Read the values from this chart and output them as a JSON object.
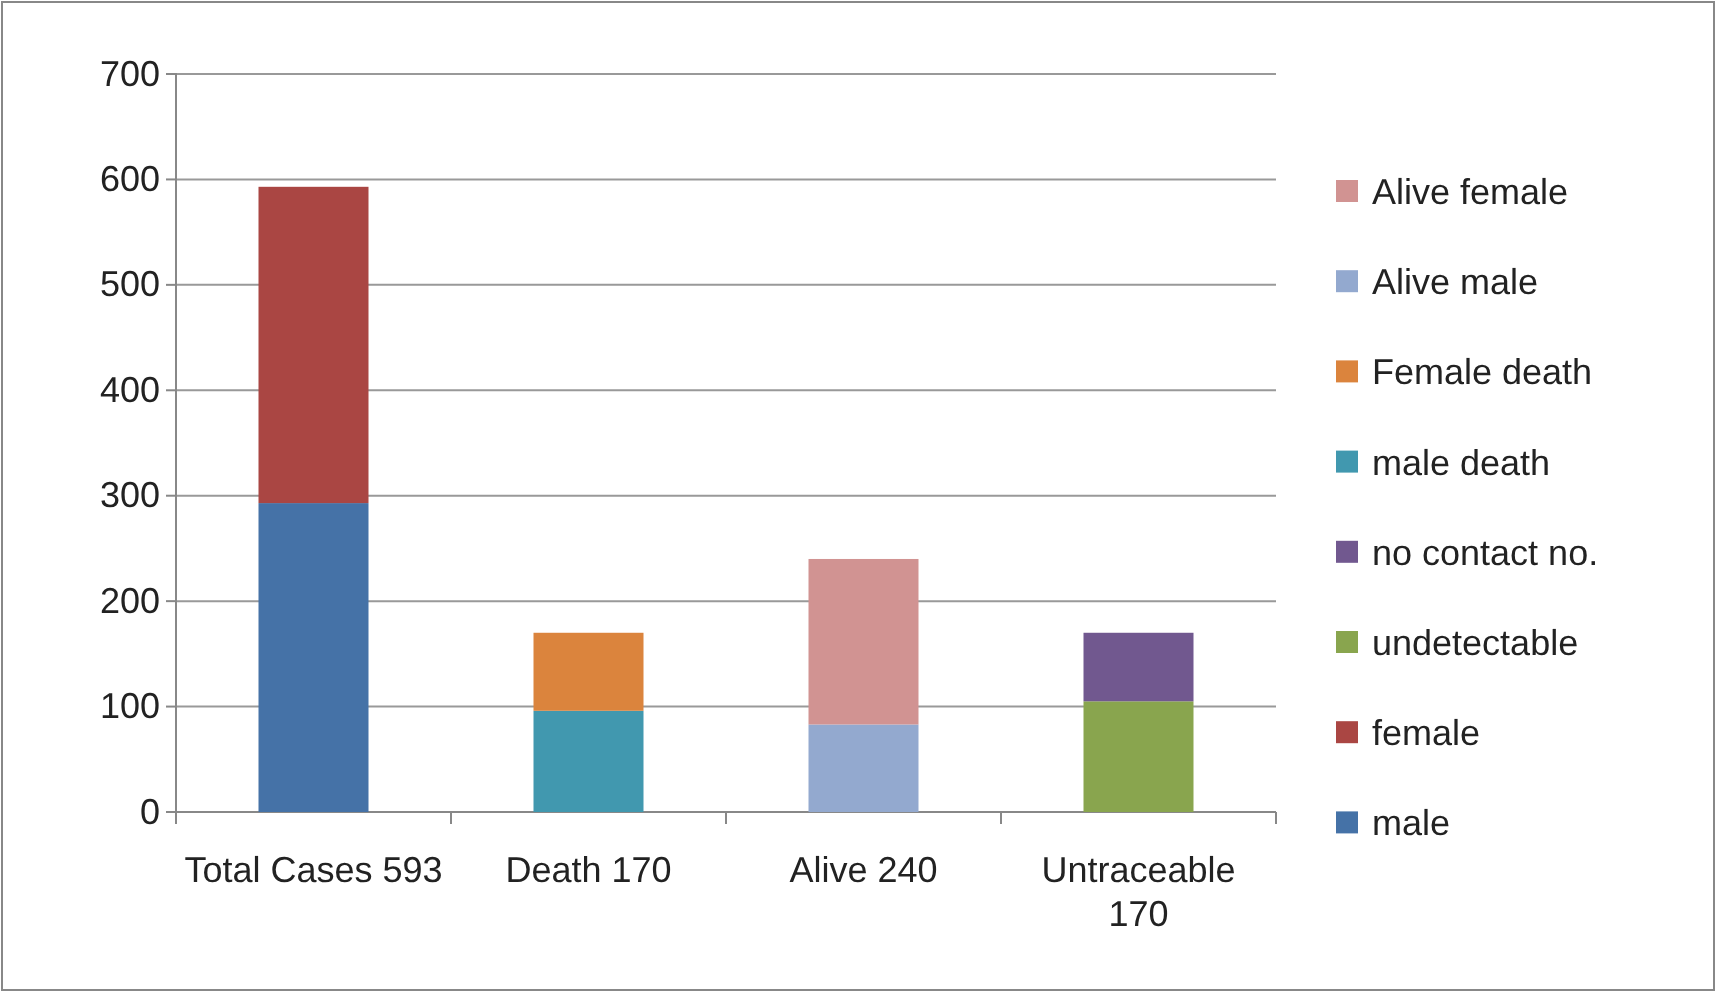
{
  "chart_data": {
    "type": "bar",
    "stacked": true,
    "categories": [
      "Total Cases 593",
      "Death 170",
      "Alive 240",
      "Untraceable 170"
    ],
    "series": [
      {
        "name": "male",
        "color": "#4572a7",
        "values": [
          293,
          null,
          null,
          null
        ]
      },
      {
        "name": "female",
        "color": "#aa4643",
        "values": [
          300,
          null,
          null,
          null
        ]
      },
      {
        "name": "undetectable",
        "color": "#89a54e",
        "values": [
          null,
          null,
          null,
          105
        ]
      },
      {
        "name": "no contact no.",
        "color": "#71588f",
        "values": [
          null,
          null,
          null,
          65
        ]
      },
      {
        "name": "male death",
        "color": "#4198af",
        "values": [
          null,
          96,
          null,
          null
        ]
      },
      {
        "name": "Female death",
        "color": "#db843d",
        "values": [
          null,
          74,
          null,
          null
        ]
      },
      {
        "name": "Alive male",
        "color": "#93a9cf",
        "values": [
          null,
          null,
          83,
          null
        ]
      },
      {
        "name": "Alive female",
        "color": "#d19392",
        "values": [
          null,
          null,
          157,
          null
        ]
      }
    ],
    "ylim": [
      0,
      700
    ],
    "yticks": [
      0,
      100,
      200,
      300,
      400,
      500,
      600,
      700
    ],
    "grid": "y",
    "legend": "right"
  }
}
